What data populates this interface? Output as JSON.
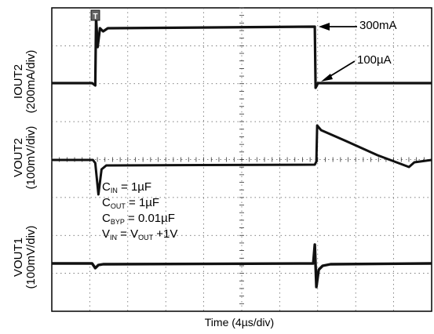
{
  "chart_data": {
    "type": "line",
    "xlabel": "Time (4µs/div)",
    "x_divisions": 10,
    "y_divisions": 8,
    "grid": true,
    "channels": [
      {
        "name": "IOUT2",
        "label_line1": "IOUT2",
        "label_line2": "(200mA/div)",
        "events": [
          {
            "time_div": 1.0,
            "value_mA": 300
          },
          {
            "time_div": 6.8,
            "value_mA": 0.1
          }
        ]
      },
      {
        "name": "VOUT2",
        "label_line1": "VOUT2",
        "label_line2": "(100mV/div)",
        "events": [
          {
            "time_div": 1.1,
            "deviation_mV": -90
          },
          {
            "time_div": 6.9,
            "deviation_mV": 80
          }
        ]
      },
      {
        "name": "VOUT1",
        "label_line1": "VOUT1",
        "label_line2": "(100mV/div)",
        "events": [
          {
            "time_div": 6.8,
            "deviation_mV": -20
          }
        ]
      }
    ],
    "annotations": {
      "high_current": "300mA",
      "low_current": "100µA"
    },
    "conditions": {
      "cin": {
        "base": "C",
        "sub": "IN",
        "value": " = 1µF"
      },
      "cout": {
        "base": "C",
        "sub": "OUT",
        "value": " = 1µF"
      },
      "cbyp": {
        "base": "C",
        "sub": "BYP",
        "value": " = 0.01µF"
      },
      "vin": {
        "base": "V",
        "sub": "IN",
        "mid": " = V",
        "sub2": "OUT",
        "value": " +1V"
      }
    },
    "trigger_marker": "T"
  }
}
